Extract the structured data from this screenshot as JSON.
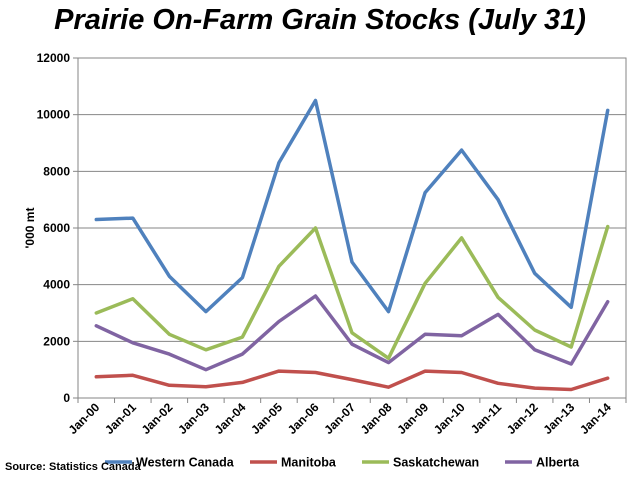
{
  "chart_data": {
    "type": "line",
    "title": "Prairie On-Farm Grain Stocks (July 31)",
    "ylabel": "'000 mt",
    "xlabel": "",
    "ylim": [
      0,
      12000
    ],
    "yticks": [
      0,
      2000,
      4000,
      6000,
      8000,
      10000,
      12000
    ],
    "yticklabels": [
      "0",
      "2000",
      "4000",
      "6000",
      "8000",
      "10000",
      "12000"
    ],
    "categories": [
      "Jan-00",
      "Jan-01",
      "Jan-02",
      "Jan-03",
      "Jan-04",
      "Jan-05",
      "Jan-06",
      "Jan-07",
      "Jan-08",
      "Jan-09",
      "Jan-10",
      "Jan-11",
      "Jan-12",
      "Jan-13",
      "Jan-14"
    ],
    "grid": "horizontal",
    "legend_position": "bottom",
    "series": [
      {
        "name": "Western Canada",
        "color": "#4F81BD",
        "values": [
          6300,
          6350,
          4300,
          3050,
          4250,
          8300,
          10500,
          4800,
          3050,
          7250,
          8750,
          7000,
          4400,
          3200,
          10150
        ]
      },
      {
        "name": "Manitoba",
        "color": "#C0504D",
        "values": [
          750,
          800,
          450,
          400,
          550,
          950,
          900,
          650,
          380,
          950,
          900,
          520,
          350,
          300,
          700
        ]
      },
      {
        "name": "Saskatchewan",
        "color": "#9BBB59",
        "values": [
          3000,
          3500,
          2250,
          1700,
          2150,
          4650,
          6000,
          2300,
          1400,
          4050,
          5650,
          3550,
          2400,
          1800,
          6050
        ]
      },
      {
        "name": "Alberta",
        "color": "#8064A2",
        "values": [
          2550,
          1950,
          1550,
          1000,
          1550,
          2700,
          3600,
          1900,
          1250,
          2250,
          2200,
          2950,
          1700,
          1200,
          3400
        ]
      }
    ],
    "source": "Source: Statistics Canada"
  }
}
